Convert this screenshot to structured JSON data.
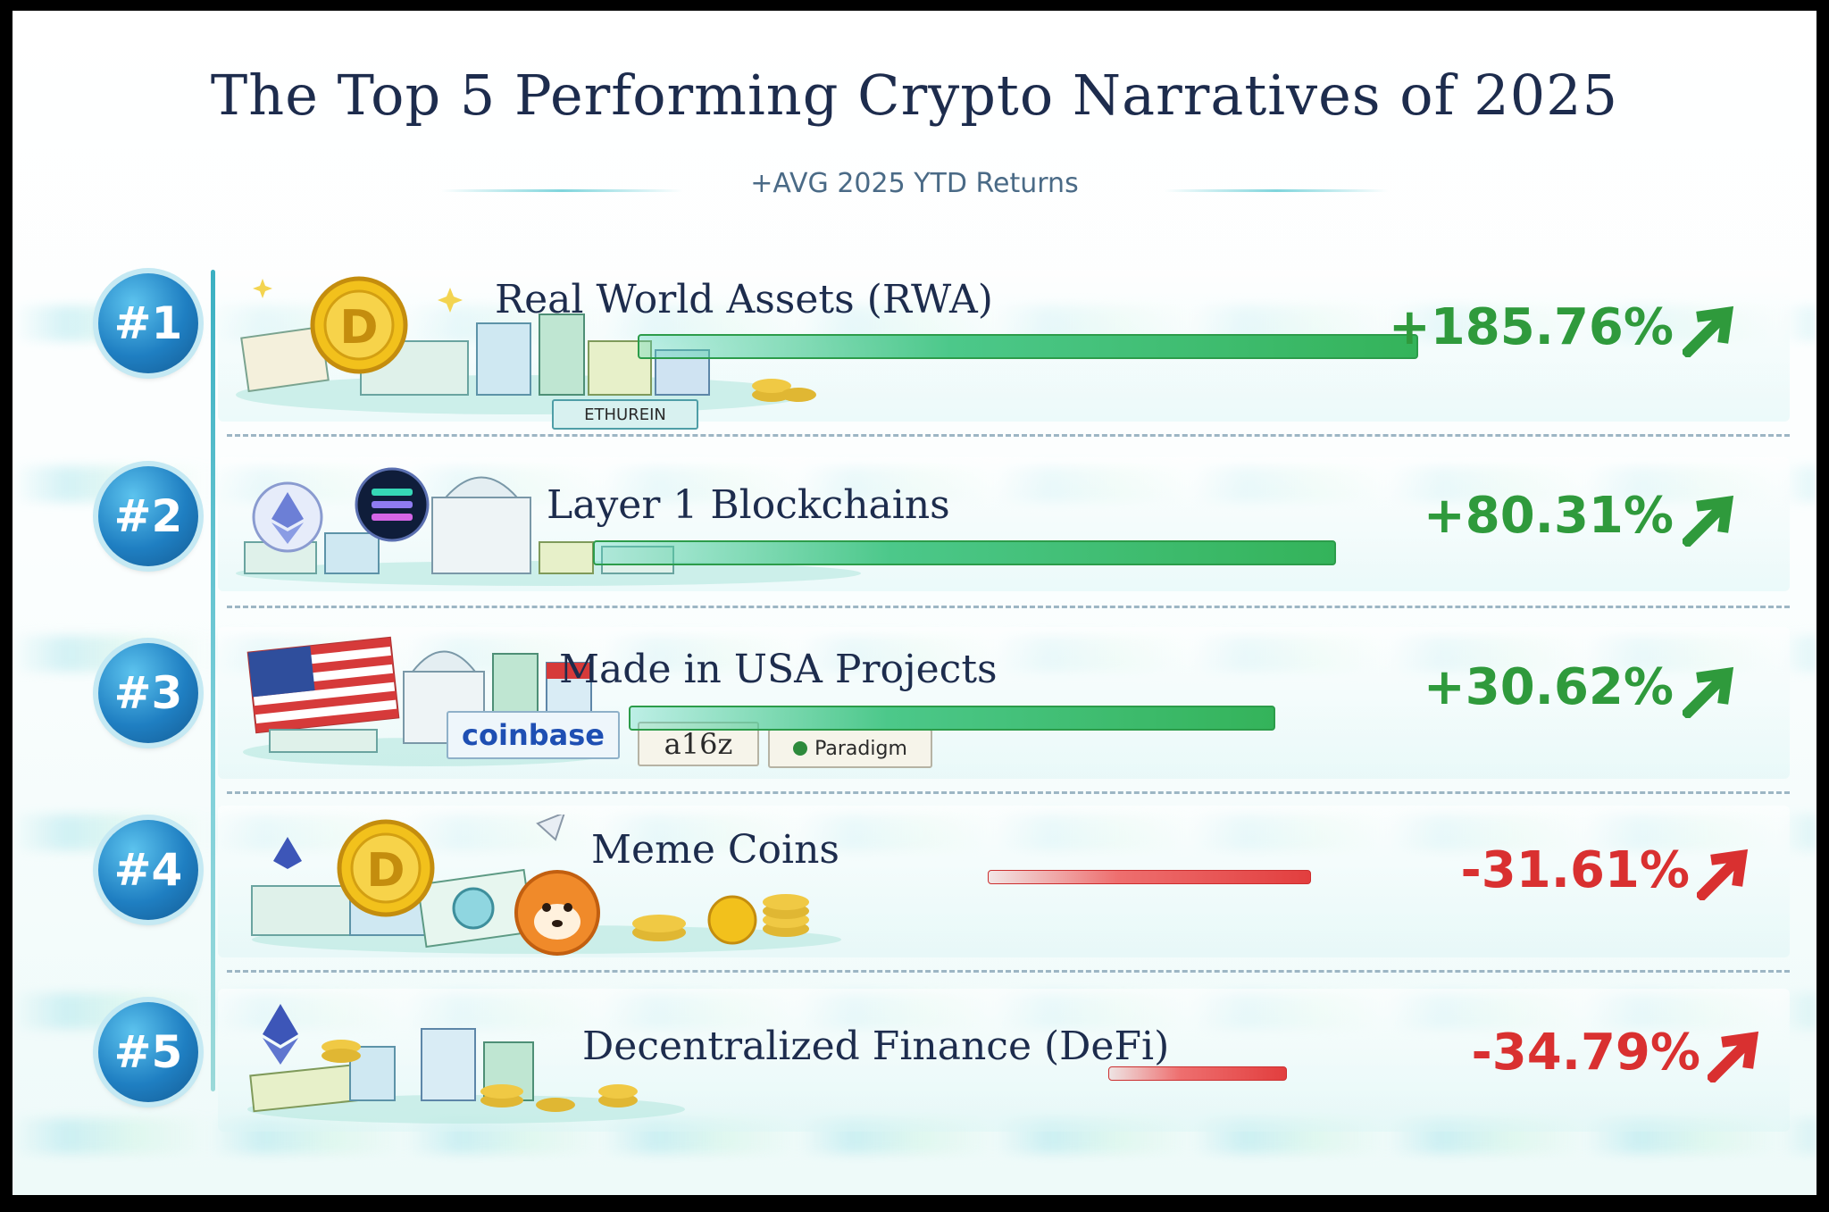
{
  "title": "The Top 5 Performing Crypto Narratives of 2025",
  "subtitle": "+AVG 2025 YTD Returns",
  "rows": [
    {
      "rank": "#1",
      "label": "Real World Assets (RWA)",
      "value_text": "+185.76%"
    },
    {
      "rank": "#2",
      "label": "Layer 1 Blockchains",
      "value_text": "+80.31%"
    },
    {
      "rank": "#3",
      "label": "Made in USA Projects",
      "value_text": "+30.62%"
    },
    {
      "rank": "#4",
      "label": "Meme Coins",
      "value_text": "-31.61%"
    },
    {
      "rank": "#5",
      "label": "Decentralized Finance (DeFi)",
      "value_text": "-34.79%"
    }
  ],
  "scene_tags": {
    "ethereum": "ETHUREIN",
    "coinbase": "coinbase",
    "a16z": "a16z",
    "paradigm": "Paradigm"
  },
  "colors": {
    "positive": "#2f9a3c",
    "negative": "#d93030",
    "badge": "#1f7fc2",
    "title": "#1d2c4d"
  },
  "chart_data": {
    "type": "bar",
    "orientation": "horizontal",
    "title": "The Top 5 Performing Crypto Narratives of 2025",
    "subtitle": "+AVG 2025 YTD Returns",
    "categories": [
      "Real World Assets (RWA)",
      "Layer 1 Blockchains",
      "Made in USA Projects",
      "Meme Coins",
      "Decentralized Finance (DeFi)"
    ],
    "values": [
      185.76,
      80.31,
      30.62,
      -31.61,
      -34.79
    ],
    "unit": "%",
    "legend": "none",
    "grid": false
  }
}
